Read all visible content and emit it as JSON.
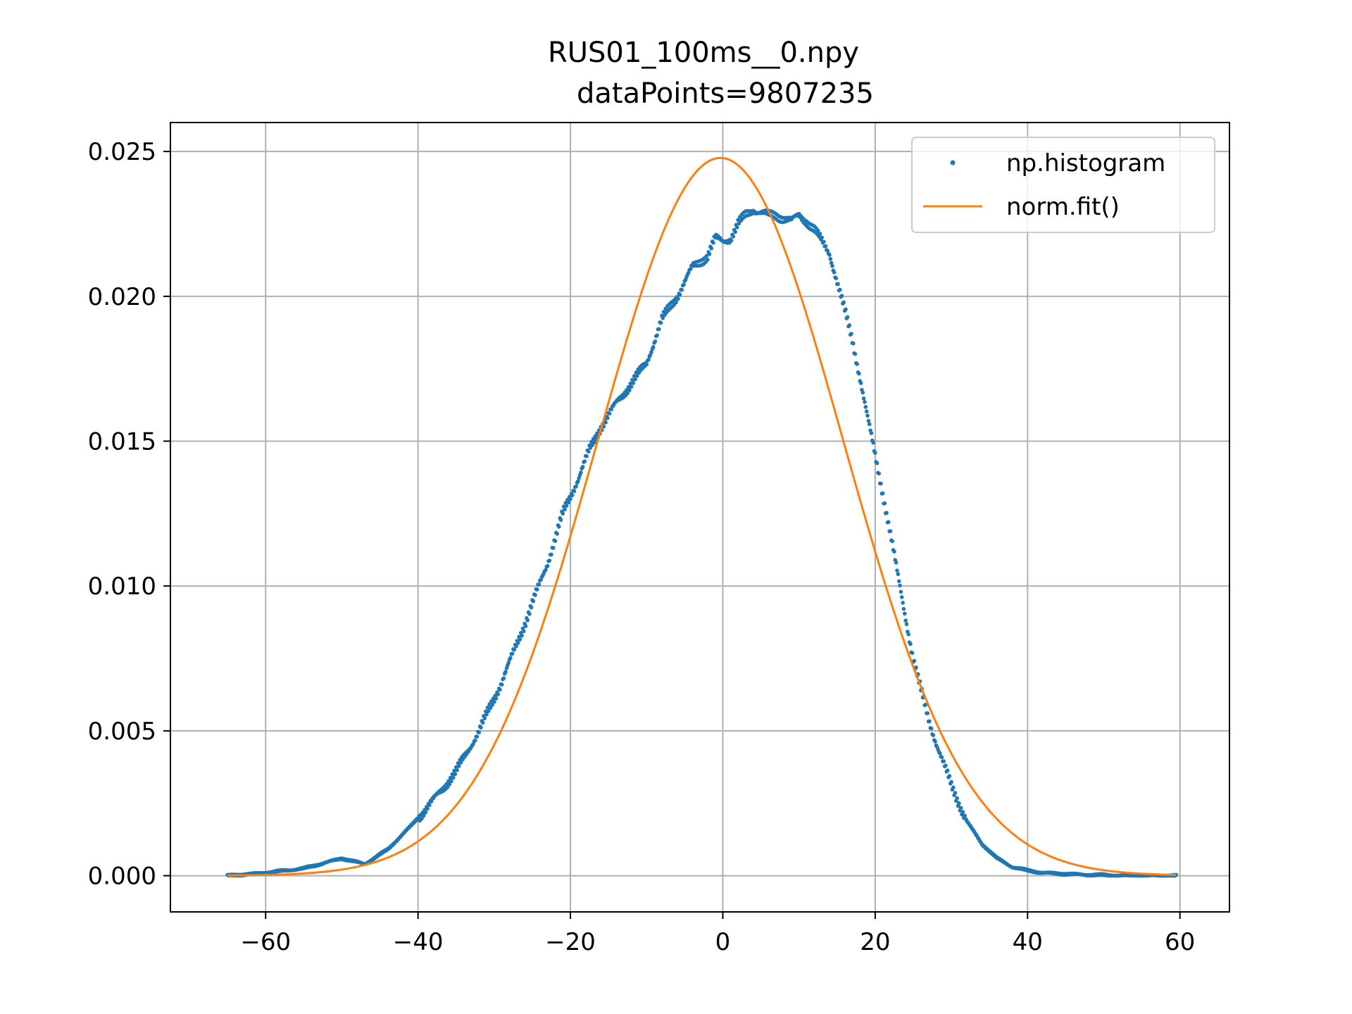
{
  "chart_data": {
    "type": "scatter",
    "title_line1": "RUS01_100ms__0.npy",
    "title_line2": "dataPoints=9807235",
    "xlabel": "",
    "ylabel": "",
    "xlim": [
      -72.5,
      66.5
    ],
    "ylim": [
      -0.00125,
      0.026
    ],
    "x_ticks": [
      -60,
      -40,
      -20,
      0,
      20,
      40,
      60
    ],
    "x_tick_labels": [
      "−60",
      "−40",
      "−20",
      "0",
      "20",
      "40",
      "60"
    ],
    "y_ticks": [
      0.0,
      0.005,
      0.01,
      0.015,
      0.02,
      0.025
    ],
    "y_tick_labels": [
      "0.000",
      "0.005",
      "0.010",
      "0.015",
      "0.020",
      "0.025"
    ],
    "grid": true,
    "legend_position": "top-right",
    "series": [
      {
        "name": "np.histogram",
        "kind": "points",
        "color": "#1f77b4",
        "x": [
          -65,
          -60,
          -55,
          -50,
          -47,
          -44,
          -41,
          -38,
          -35,
          -32,
          -29,
          -26,
          -23,
          -21,
          -19,
          -17.5,
          -16,
          -14,
          -12,
          -10,
          -8,
          -6,
          -4,
          -2,
          -1,
          0,
          1,
          2,
          3,
          4,
          5,
          6,
          7,
          8,
          9,
          10,
          11,
          12,
          13,
          14,
          15,
          16,
          17,
          18,
          19,
          20,
          21,
          22,
          23,
          24,
          25,
          26,
          27,
          28,
          30,
          32,
          34,
          36,
          38,
          40,
          42,
          45,
          48,
          52,
          56,
          59.5
        ],
        "y": [
          0.0,
          0.0001,
          0.00025,
          0.0006,
          0.0004,
          0.0009,
          0.0017,
          0.0026,
          0.0036,
          0.005,
          0.0067,
          0.0087,
          0.0108,
          0.0125,
          0.0137,
          0.0147,
          0.0155,
          0.0163,
          0.017,
          0.0177,
          0.0192,
          0.02,
          0.021,
          0.0214,
          0.022,
          0.0219,
          0.022,
          0.0225,
          0.0228,
          0.023,
          0.0229,
          0.0228,
          0.0228,
          0.0227,
          0.0226,
          0.0228,
          0.0226,
          0.0223,
          0.0219,
          0.0215,
          0.0205,
          0.0195,
          0.0185,
          0.0172,
          0.0158,
          0.0145,
          0.0132,
          0.0118,
          0.0103,
          0.0089,
          0.0075,
          0.0064,
          0.0054,
          0.0046,
          0.0031,
          0.0019,
          0.0011,
          0.0006,
          0.0003,
          0.00018,
          0.0001,
          6e-05,
          3e-05,
          1e-05,
          0.0,
          0.0
        ]
      },
      {
        "name": "norm.fit()",
        "kind": "line",
        "color": "#ff7f0e",
        "mean": -0.3,
        "std": 16.1,
        "x_range": [
          -65,
          59.5
        ]
      }
    ]
  }
}
